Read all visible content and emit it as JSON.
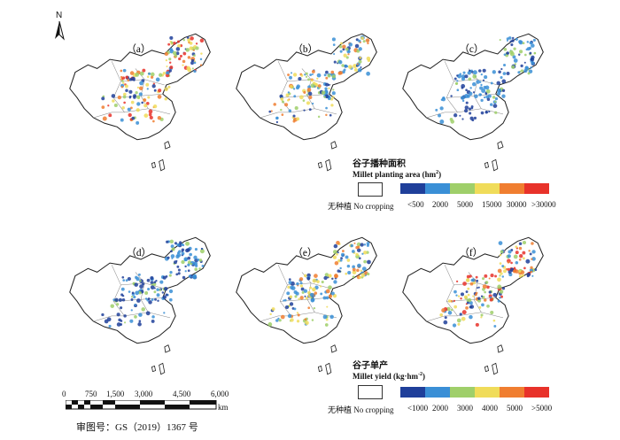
{
  "north_label": "N",
  "panels": [
    {
      "label": "（a）",
      "dots": "red"
    },
    {
      "label": "（b）",
      "dots": "mixed"
    },
    {
      "label": "（c）",
      "dots": "blue"
    },
    {
      "label": "（d）",
      "dots": "blue"
    },
    {
      "label": "（e）",
      "dots": "mixed"
    },
    {
      "label": "（f）",
      "dots": "red"
    }
  ],
  "legend_area": {
    "title_cn": "谷子播种面积",
    "title_en": "Millet planting area (hm",
    "title_sup": "2",
    "title_close": ")",
    "no_crop_cn": "无种植",
    "no_crop_en": "No cropping",
    "colors": [
      "#1f3f9a",
      "#3a8fd6",
      "#9fcf6a",
      "#f0dc5a",
      "#f07e30",
      "#e8322a"
    ],
    "labels": [
      "<500",
      "2000",
      "5000",
      "15000",
      "30000",
      ">30000"
    ]
  },
  "legend_yield": {
    "title_cn": "谷子单产",
    "title_en": "Millet yield (kg·hm",
    "title_sup": "-2",
    "title_close": ")",
    "no_crop_cn": "无种植",
    "no_crop_en": "No cropping",
    "colors": [
      "#1f3f9a",
      "#3a8fd6",
      "#9fcf6a",
      "#f0dc5a",
      "#f07e30",
      "#e8322a"
    ],
    "labels": [
      "<1000",
      "2000",
      "3000",
      "4000",
      "5000",
      ">5000"
    ]
  },
  "scale_bar": {
    "ticks": [
      "0",
      "750",
      "1,500",
      "3,000",
      "4,500",
      "6,000"
    ],
    "unit": "km"
  },
  "review_number": "审图号：GS（2019）1367 号"
}
